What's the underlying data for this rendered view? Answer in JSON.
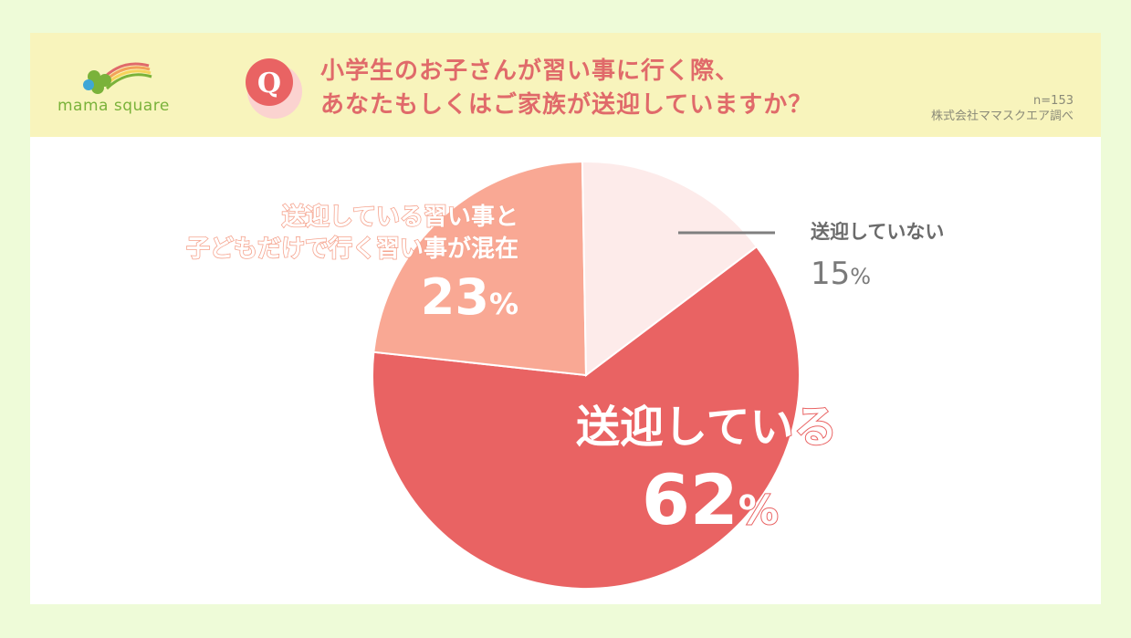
{
  "header": {
    "logo_text": "mama square",
    "q_letter": "Q",
    "question_line1": "小学生のお子さんが習い事に行く際、",
    "question_line2": "あなたもしくはご家族が送迎していますか？",
    "sample": "n=153",
    "source": "株式会社ママスクエア調べ"
  },
  "colors": {
    "background": "#eefbd8",
    "header": "#f8f4bc",
    "accent": "#e06a6a",
    "slice_yes": "#e96363",
    "slice_mixed": "#f9a894",
    "slice_no": "#fdebea"
  },
  "chart_data": {
    "type": "pie",
    "slices": [
      {
        "label": "送迎している",
        "value": 62,
        "color": "#e96363"
      },
      {
        "label_line1": "送迎している習い事と",
        "label_line2": "子どもだけで行く習い事が混在",
        "value": 23,
        "color": "#f9a894"
      },
      {
        "label": "送迎していない",
        "value": 15,
        "color": "#fdebea"
      }
    ],
    "percent_labels": {
      "yes": "62",
      "mixed": "23",
      "no": "15",
      "unit": "%"
    }
  }
}
